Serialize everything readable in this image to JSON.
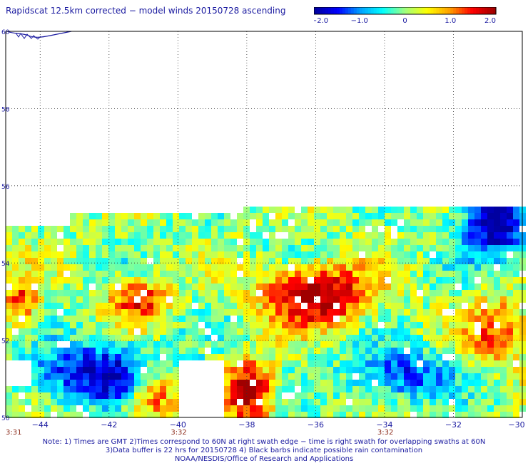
{
  "title": "Rapidscat 12.5km corrected − model winds 20150728 ascending",
  "colorbar": {
    "min": -2.0,
    "max": 2.0,
    "ticks": [
      "−2.0",
      "−1.0",
      "0",
      "1.0",
      "2.0"
    ],
    "colors": [
      "#0000a0",
      "#0000ff",
      "#00a0ff",
      "#00ffff",
      "#a0ff80",
      "#ffff00",
      "#ffa000",
      "#ff0000",
      "#a00000"
    ]
  },
  "map": {
    "lon_range": [
      -45,
      -30
    ],
    "lat_range": [
      50,
      60
    ],
    "lon_ticks": [
      "−44",
      "−42",
      "−40",
      "−38",
      "−36",
      "−34",
      "−32",
      "−30"
    ],
    "lon_tick_values": [
      -44,
      -42,
      -40,
      -38,
      -36,
      -34,
      -32,
      -30
    ],
    "lat_ticks": [
      "60",
      "58",
      "56",
      "54",
      "52",
      "50"
    ],
    "lat_tick_values": [
      60,
      58,
      56,
      54,
      52,
      50
    ],
    "grid": "dotted",
    "time_labels": [
      {
        "lon": -45,
        "text": "3:31"
      },
      {
        "lon": -40,
        "text": "3:32"
      },
      {
        "lon": -34,
        "text": "3:32"
      }
    ]
  },
  "notes": {
    "line1": "Note: 1) Times are GMT 2)Times correspond to 60N at right swath edge − time is right swath for overlapping swaths at 60N",
    "line2": "3)Data buffer is 22 hrs for 20150728 4) Black barbs indicate possible rain contamination",
    "line3": "NOAA/NESDIS/Office of Research and Applications"
  }
}
